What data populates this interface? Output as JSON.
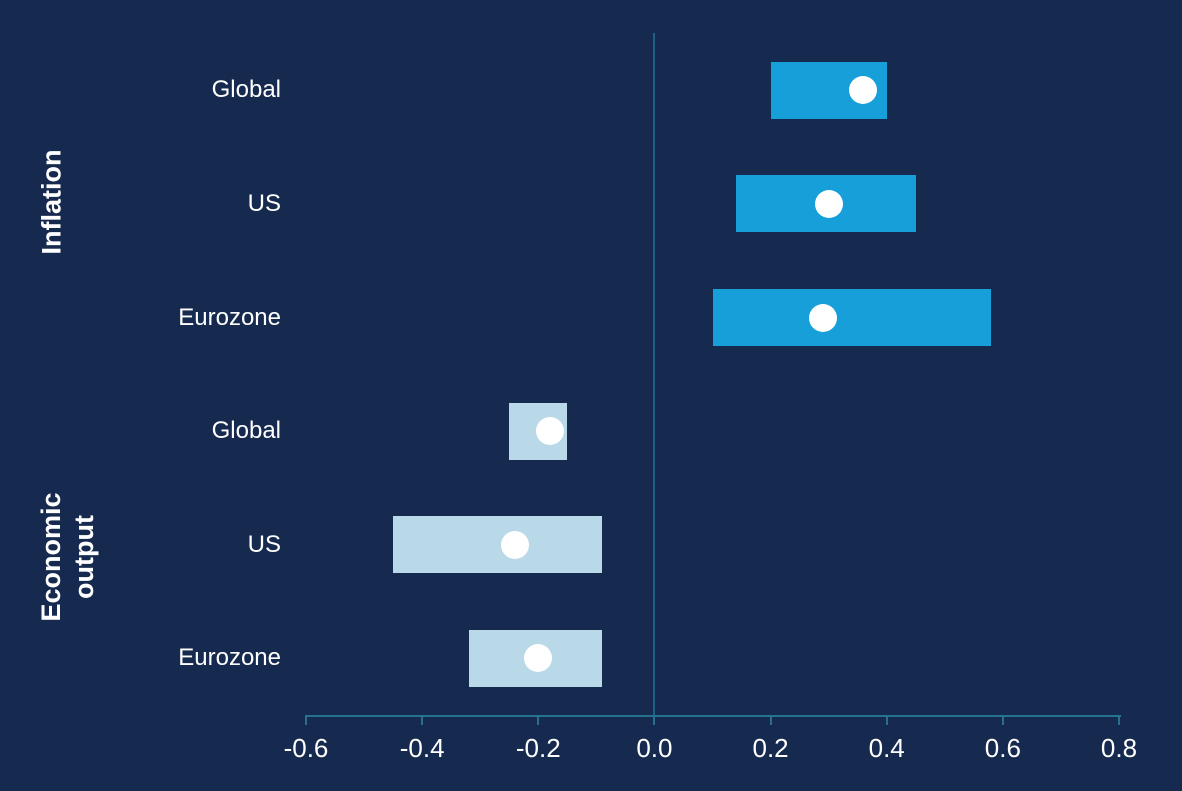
{
  "chart_data": {
    "type": "bar",
    "subtype": "horizontal-range-bars-with-point-estimate",
    "orientation": "horizontal",
    "title": "",
    "xlabel": "",
    "ylabel": "",
    "xlim": [
      -0.6,
      0.8
    ],
    "x_tick_values": [
      -0.6,
      -0.4,
      -0.2,
      0.0,
      0.2,
      0.4,
      0.6,
      0.8
    ],
    "x_tick_labels": [
      "-0.6",
      "-0.4",
      "-0.2",
      "0.0",
      "0.2",
      "0.4",
      "0.6",
      "0.8"
    ],
    "grid": "off",
    "legend": "none",
    "zero_reference_line": 0.0,
    "background": "#16294E",
    "text_color": "#FFFFFF",
    "axis_color": "#25718F",
    "zero_line_color": "#1C6286",
    "point_color": "#FFFFFF",
    "groups": [
      {
        "label": "Inflation",
        "label_lines": [
          "Inflation"
        ],
        "bar_color": "#169FD9",
        "rows": [
          {
            "category": "Global",
            "low": 0.2,
            "high": 0.4,
            "point": 0.36
          },
          {
            "category": "US",
            "low": 0.14,
            "high": 0.45,
            "point": 0.3
          },
          {
            "category": "Eurozone",
            "low": 0.1,
            "high": 0.58,
            "point": 0.29
          }
        ]
      },
      {
        "label": "Economic output",
        "label_lines": [
          "Economic",
          "output"
        ],
        "bar_color": "#B9D9E8",
        "rows": [
          {
            "category": "Global",
            "low": -0.25,
            "high": -0.15,
            "point": -0.18
          },
          {
            "category": "US",
            "low": -0.45,
            "high": -0.09,
            "point": -0.24
          },
          {
            "category": "Eurozone",
            "low": -0.32,
            "high": -0.09,
            "point": -0.2
          }
        ]
      }
    ]
  }
}
